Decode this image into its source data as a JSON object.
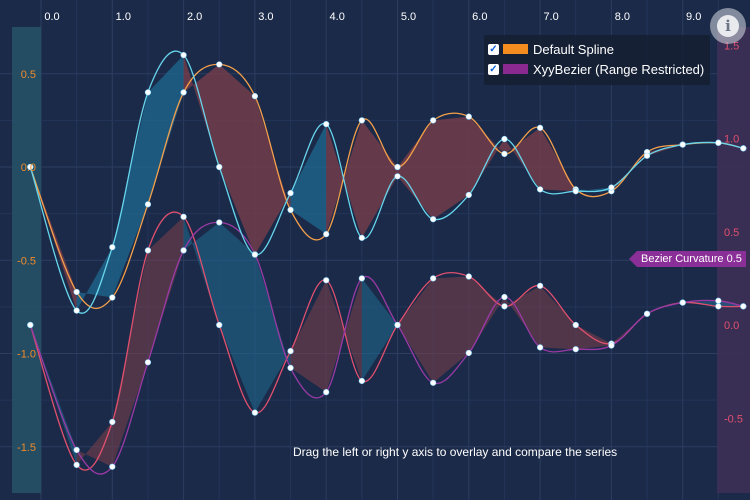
{
  "chart_data": {
    "type": "line",
    "title": "",
    "x_axis": {
      "ticks": [
        "0.0",
        "1.0",
        "2.0",
        "3.0",
        "4.0",
        "5.0",
        "6.0",
        "7.0",
        "8.0",
        "9.0"
      ],
      "range": [
        -0.15,
        9.85
      ]
    },
    "y_axis_left": {
      "ticks": [
        "-1.5",
        "-1.0",
        "-0.5",
        "0.0",
        "0.5"
      ],
      "range": [
        -1.72,
        0.72
      ],
      "color": "#f08a2a"
    },
    "y_axis_right": {
      "ticks": [
        "-0.5",
        "0.0",
        "0.5",
        "1.0",
        "1.5"
      ],
      "range": [
        -0.9,
        1.65
      ],
      "color": "#e0506e"
    },
    "grid": true,
    "legend_position": "top-right",
    "series": [
      {
        "name": "Default Spline",
        "legend_color": "#f58c20",
        "axis": "left",
        "x": [
          -0.15,
          0.5,
          1.0,
          1.5,
          2.0,
          2.5,
          3.0,
          3.5,
          4.0,
          4.5,
          5.0,
          5.5,
          6.0,
          6.5,
          7.0,
          7.5,
          8.0,
          8.5,
          9.0,
          9.5,
          9.85
        ],
        "y1": [
          0.0,
          -0.67,
          -0.7,
          -0.2,
          0.4,
          0.55,
          0.38,
          -0.23,
          -0.36,
          0.25,
          0.0,
          0.25,
          0.27,
          0.07,
          0.21,
          -0.12,
          -0.13,
          0.08,
          0.12,
          0.13,
          0.1
        ],
        "y2": [
          0.0,
          -0.77,
          -0.43,
          0.4,
          0.6,
          0.0,
          -0.47,
          -0.14,
          0.23,
          -0.38,
          -0.05,
          -0.28,
          -0.15,
          0.15,
          -0.12,
          -0.13,
          -0.11,
          0.06,
          0.12,
          0.13,
          0.1
        ]
      },
      {
        "name": "XyyBezier (Range Restricted)",
        "legend_color": "#8a2a90",
        "axis": "right",
        "x": [
          -0.15,
          0.5,
          1.0,
          1.5,
          2.0,
          2.5,
          3.0,
          3.5,
          4.0,
          4.5,
          5.0,
          5.5,
          6.0,
          6.5,
          7.0,
          7.5,
          8.0,
          8.5,
          9.0,
          9.5,
          9.85
        ],
        "y1": [
          0.0,
          -0.75,
          -0.52,
          0.4,
          0.58,
          0.0,
          -0.47,
          -0.14,
          0.24,
          -0.3,
          0.0,
          0.25,
          0.26,
          0.1,
          0.21,
          0.0,
          -0.1,
          0.06,
          0.12,
          0.1,
          0.1
        ],
        "y2": [
          0.0,
          -0.67,
          -0.76,
          -0.2,
          0.4,
          0.55,
          0.38,
          -0.23,
          -0.36,
          0.25,
          0.0,
          -0.31,
          -0.15,
          0.15,
          -0.12,
          -0.13,
          -0.11,
          0.06,
          0.12,
          0.13,
          0.1
        ]
      }
    ]
  },
  "legend": {
    "items": [
      {
        "label": "Default Spline",
        "checked": true,
        "color": "#f58c20"
      },
      {
        "label": "XyyBezier (Range Restricted)",
        "checked": true,
        "color": "#8a2a90"
      }
    ]
  },
  "annotation": {
    "bezier_label": "Bezier Curvature 0.5"
  },
  "instruction_text": "Drag the left or right y axis to overlay and compare the series",
  "info_button": {
    "icon": "info-icon",
    "glyph": "i"
  },
  "colors": {
    "background": "#1b2a48",
    "spline_line": "#f5a04a",
    "bezier_line": "#e0506e",
    "band_line": "#67d5ec",
    "fill_up": "#1f6a90",
    "fill_down": "#7e3f4a",
    "axis_strip_left": "#265468",
    "axis_strip_right": "#3d2f55"
  }
}
